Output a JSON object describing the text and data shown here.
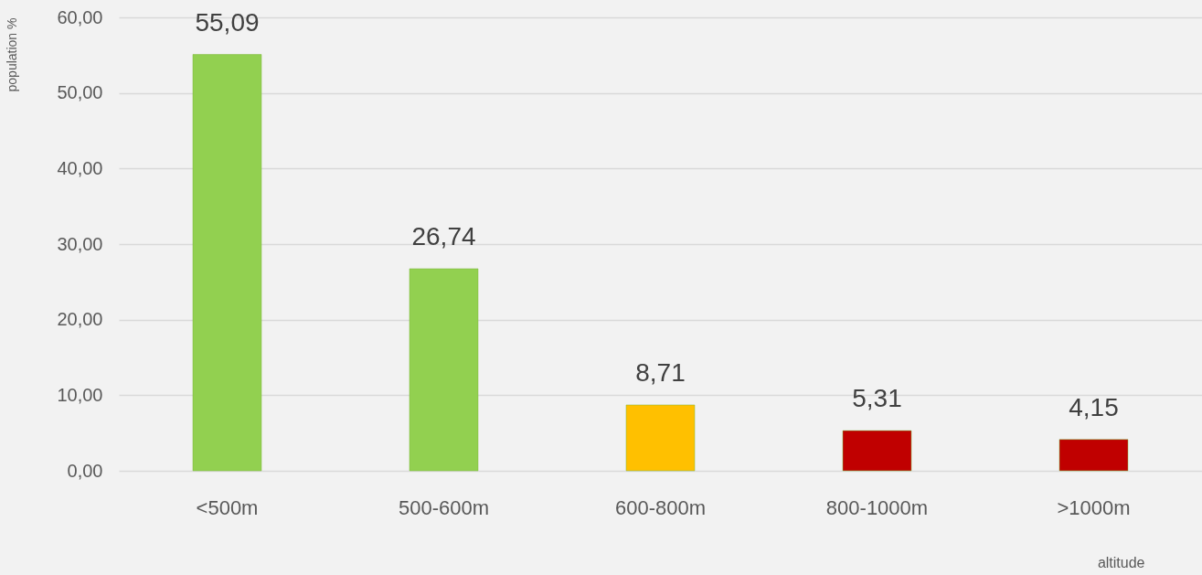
{
  "chart_data": {
    "type": "bar",
    "ylabel": "population %",
    "xlabel": "altitude",
    "categories": [
      "<500m",
      "500-600m",
      "600-800m",
      "800-1000m",
      ">1000m"
    ],
    "values": [
      55.09,
      26.74,
      8.71,
      5.31,
      4.15
    ],
    "colors": [
      "#92d050",
      "#92d050",
      "#ffc000",
      "#c00000",
      "#c00000"
    ],
    "value_labels": [
      "55,09",
      "26,74",
      "8,71",
      "5,31",
      "4,15"
    ],
    "ylim": [
      0,
      60
    ],
    "yticks": [
      {
        "value": 0,
        "label": "0,00"
      },
      {
        "value": 10,
        "label": "10,00"
      },
      {
        "value": 20,
        "label": "20,00"
      },
      {
        "value": 30,
        "label": "30,00"
      },
      {
        "value": 40,
        "label": "40,00"
      },
      {
        "value": 50,
        "label": "50,00"
      },
      {
        "value": 60,
        "label": "60,00"
      }
    ],
    "grid": "y"
  }
}
